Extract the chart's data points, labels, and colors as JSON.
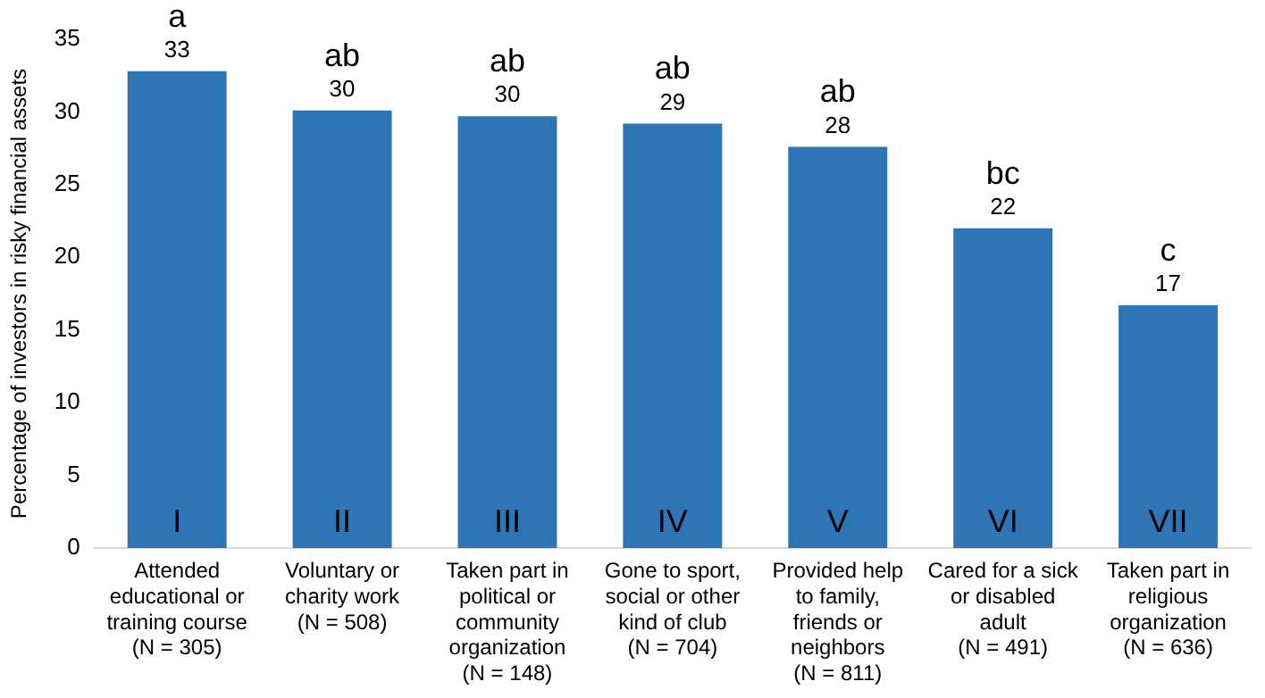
{
  "chart_data": {
    "type": "bar",
    "ylabel": "Percentage of investors in risky financial assets",
    "categories": [
      "Attended\neducational or\ntraining course\n(N = 305)",
      "Voluntary or\ncharity work\n(N = 508)",
      "Taken part in\npolitical or\ncommunity\norganization\n(N = 148)",
      "Gone to sport,\nsocial or other\nkind of club\n(N = 704)",
      "Provided help\nto family,\nfriends or\nneighbors\n(N = 811)",
      "Cared for a sick\nor disabled\nadult\n(N = 491)",
      "Taken part in\nreligious\norganization\n(N = 636)"
    ],
    "values": [
      32.8,
      30.1,
      29.7,
      29.2,
      27.6,
      22,
      16.7
    ],
    "value_labels": [
      "33",
      "30",
      "30",
      "29",
      "28",
      "22",
      "17"
    ],
    "color": "#2e75b6",
    "ylim": [
      0,
      35
    ],
    "yticks": [
      0,
      5,
      10,
      15,
      20,
      25,
      30,
      35
    ],
    "grid": false,
    "legend": false,
    "annotations": [
      "a",
      "ab",
      "ab",
      "ab",
      "ab",
      "bc",
      "c",
      "I",
      "II",
      "III",
      "IV",
      "V",
      "VI",
      "VII"
    ]
  }
}
